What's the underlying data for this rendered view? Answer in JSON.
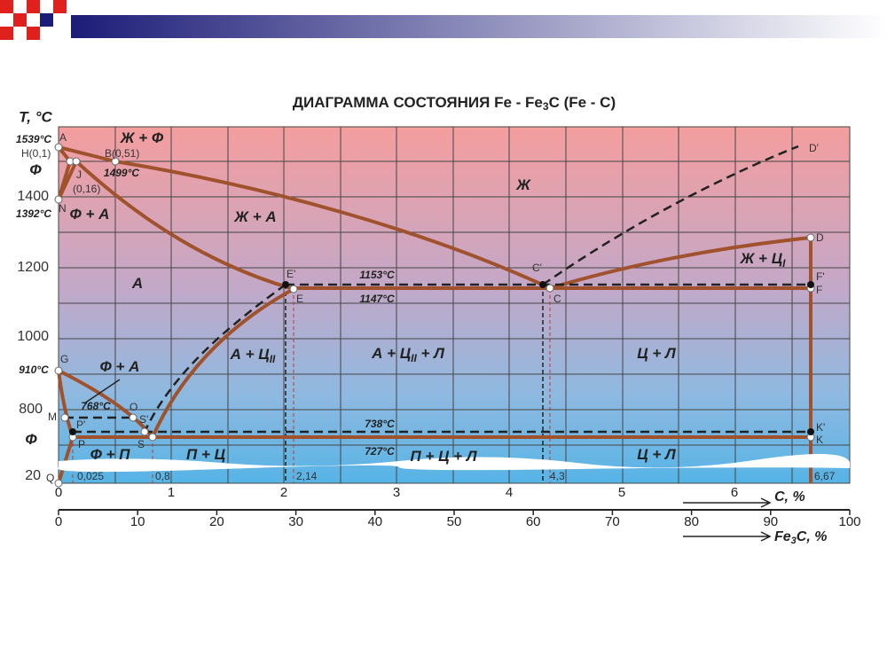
{
  "title": {
    "main": "ДИАГРАММА СОСТОЯНИЯ Fe - Fe",
    "sub": "3",
    "tail": "C (Fe - C)"
  },
  "y_axis_label": "T, °C",
  "y_ticks": [
    "1400",
    "1200",
    "1000",
    "800",
    "20"
  ],
  "temperature_labels": [
    "1539°C",
    "1499°C",
    "1392°C",
    "910°C",
    "768°C",
    "1153°C",
    "1147°C",
    "738°C",
    "727°C"
  ],
  "points": [
    "A",
    "H(0,1)",
    "B(0,51)",
    "J",
    "(0,16)",
    "N",
    "E'",
    "E",
    "C'",
    "C",
    "D'",
    "D",
    "F'",
    "F",
    "G",
    "M",
    "O",
    "P'",
    "S'",
    "P",
    "S",
    "K'",
    "K",
    "Q"
  ],
  "regions": [
    {
      "main": "Ж + Ф"
    },
    {
      "main": "Ф"
    },
    {
      "main": "Ф + А"
    },
    {
      "main": "Ж + А"
    },
    {
      "main": "Ж"
    },
    {
      "main": "А"
    },
    {
      "main": "Ж + Ц",
      "sub": "I"
    },
    {
      "main": "А + Ц",
      "sub": "II"
    },
    {
      "main": "А + Ц",
      "sub": "II",
      "tail": " + Л"
    },
    {
      "main": "Ц + Л"
    },
    {
      "main": "Ф + А"
    },
    {
      "main": "Ф"
    },
    {
      "main": "Ф + П"
    },
    {
      "main": "П + Ц"
    },
    {
      "main": "П + Ц + Л"
    },
    {
      "main": "Ц + Л"
    }
  ],
  "composition_labels": [
    "0,025",
    "0,8",
    "2,14",
    "4,3",
    "6,67"
  ],
  "carbon_axis": {
    "label": "C, %",
    "ticks": [
      "0",
      "1",
      "2",
      "3",
      "4",
      "5",
      "6"
    ]
  },
  "cementite_axis": {
    "label": {
      "main": "Fe",
      "sub": "3",
      "tail": "C, %"
    },
    "ticks": [
      "0",
      "10",
      "20",
      "30",
      "40",
      "50",
      "60",
      "70",
      "80",
      "90",
      "100"
    ]
  }
}
